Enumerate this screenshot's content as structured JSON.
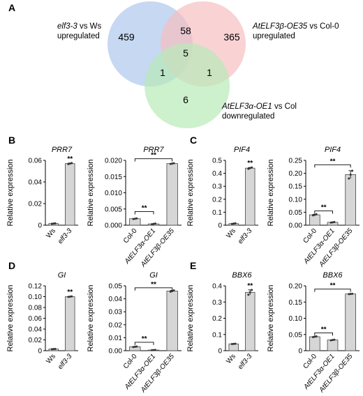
{
  "panel_labels": [
    "A",
    "B",
    "C",
    "D",
    "E"
  ],
  "venn": {
    "sets": [
      {
        "label_italic": "elf3-3",
        "label_line1_rest": " vs Ws",
        "label_line2": "upregulated",
        "color": "#aec7ec"
      },
      {
        "label_italic": "AtELF3β-OE35",
        "label_line1_rest": " vs Col-0",
        "label_line2": "upregulated",
        "color": "#f7bfc1"
      },
      {
        "label_italic": "AtELF3α-OE1",
        "label_line1_rest": " vs Col",
        "label_line2": "downregulated",
        "color": "#b8eab8"
      }
    ],
    "regions": {
      "only_1": "459",
      "only_2": "365",
      "only_3": "6",
      "1_2": "58",
      "1_3": "1",
      "2_3": "1",
      "all": "5"
    }
  },
  "chart_data": [
    {
      "id": "B1",
      "type": "bar",
      "title": "PRR7",
      "ylabel": "Relative expression",
      "categories": [
        "Ws",
        "elf3-3"
      ],
      "values": [
        0.0015,
        0.057
      ],
      "points": [
        [
          0.0013,
          0.0015,
          0.0017
        ],
        [
          0.0565,
          0.057,
          0.0575
        ]
      ],
      "ylim": [
        0,
        0.06
      ],
      "yticks": [
        "0",
        "0.02",
        "0.04",
        "0.06"
      ],
      "significance": [
        {
          "bar": 1,
          "label": "**"
        }
      ]
    },
    {
      "id": "B2",
      "type": "bar",
      "title": "PRR7",
      "ylabel": "Relative expression",
      "categories": [
        "Col-0",
        "AtELF3α-OE1",
        "AtELF3β-OE35"
      ],
      "values": [
        0.002,
        0.0004,
        0.019
      ],
      "points": [
        [
          0.0019,
          0.002,
          0.0021
        ],
        [
          0.0003,
          0.0004,
          0.0005
        ],
        [
          0.0189,
          0.019,
          0.0191
        ]
      ],
      "ylim": [
        0,
        0.02
      ],
      "yticks": [
        "0.000",
        "0.005",
        "0.010",
        "0.015",
        "0.020"
      ],
      "brackets": [
        {
          "from": 0,
          "to": 1,
          "y": 0.0042,
          "label": "**"
        },
        {
          "from": 0,
          "to": 2,
          "y": 0.0205,
          "label": "**"
        }
      ]
    },
    {
      "id": "C1",
      "type": "bar",
      "title": "PIF4",
      "ylabel": "Relative expression",
      "categories": [
        "Ws",
        "elf3-3"
      ],
      "values": [
        0.012,
        0.44
      ],
      "points": [
        [
          0.01,
          0.012,
          0.014
        ],
        [
          0.435,
          0.44,
          0.445
        ]
      ],
      "ylim": [
        0,
        0.5
      ],
      "yticks": [
        "0",
        "0.1",
        "0.2",
        "0.3",
        "0.4",
        "0.5"
      ],
      "significance": [
        {
          "bar": 1,
          "label": "**"
        }
      ]
    },
    {
      "id": "C2",
      "type": "bar",
      "title": "PIF4",
      "ylabel": "Relative expression",
      "categories": [
        "Col-0",
        "AtELF3α-OE1",
        "AtELF3β-OE35"
      ],
      "values": [
        0.04,
        0.011,
        0.195
      ],
      "points": [
        [
          0.038,
          0.04,
          0.042
        ],
        [
          0.01,
          0.011,
          0.012
        ],
        [
          0.18,
          0.195,
          0.21
        ]
      ],
      "ylim": [
        0,
        0.25
      ],
      "yticks": [
        "0.00",
        "0.05",
        "0.10",
        "0.15",
        "0.20",
        "0.25"
      ],
      "brackets": [
        {
          "from": 0,
          "to": 1,
          "y": 0.055,
          "label": "**"
        },
        {
          "from": 0,
          "to": 2,
          "y": 0.233,
          "label": "**"
        }
      ]
    },
    {
      "id": "D1",
      "type": "bar",
      "title": "GI",
      "ylabel": "Relative expression",
      "categories": [
        "Ws",
        "elf3-3"
      ],
      "values": [
        0.003,
        0.1
      ],
      "points": [
        [
          0.0027,
          0.003,
          0.0033
        ],
        [
          0.0995,
          0.1,
          0.1005
        ]
      ],
      "ylim": [
        0,
        0.12
      ],
      "yticks": [
        "0",
        "0.02",
        "0.04",
        "0.06",
        "0.08",
        "0.10",
        "0.12"
      ],
      "significance": [
        {
          "bar": 1,
          "label": "**"
        }
      ]
    },
    {
      "id": "D2",
      "type": "bar",
      "title": "GI",
      "ylabel": "Relative expression",
      "categories": [
        "Col-0",
        "AtELF3α-OE1",
        "AtELF3β-OE35"
      ],
      "values": [
        0.003,
        0.0005,
        0.046
      ],
      "points": [
        [
          0.0028,
          0.003,
          0.0032
        ],
        [
          0.0004,
          0.0005,
          0.0006
        ],
        [
          0.0455,
          0.046,
          0.0465
        ]
      ],
      "ylim": [
        0,
        0.05
      ],
      "yticks": [
        "0.00",
        "0.01",
        "0.02",
        "0.03",
        "0.04",
        "0.05"
      ],
      "brackets": [
        {
          "from": 0,
          "to": 1,
          "y": 0.0065,
          "label": "**"
        },
        {
          "from": 0,
          "to": 2,
          "y": 0.0485,
          "label": "**"
        }
      ]
    },
    {
      "id": "E1",
      "type": "bar",
      "title": "BBX6",
      "ylabel": "Relative expression",
      "categories": [
        "Ws",
        "elf3-3"
      ],
      "values": [
        0.042,
        0.36
      ],
      "points": [
        [
          0.041,
          0.042,
          0.043
        ],
        [
          0.345,
          0.36,
          0.375
        ]
      ],
      "ylim": [
        0,
        0.4
      ],
      "yticks": [
        "0",
        "0.1",
        "0.2",
        "0.3",
        "0.4"
      ],
      "significance": [
        {
          "bar": 1,
          "label": "**"
        }
      ]
    },
    {
      "id": "E2",
      "type": "bar",
      "title": "BBX6",
      "ylabel": "Relative expression",
      "categories": [
        "Col-0",
        "AtELF3α-OE1",
        "AtELF3β-OE35"
      ],
      "values": [
        0.043,
        0.033,
        0.175
      ],
      "points": [
        [
          0.042,
          0.043,
          0.044
        ],
        [
          0.032,
          0.033,
          0.034
        ],
        [
          0.1745,
          0.175,
          0.1755
        ]
      ],
      "ylim": [
        0,
        0.2
      ],
      "yticks": [
        "0",
        "0.05",
        "0.10",
        "0.15",
        "0.20"
      ],
      "brackets": [
        {
          "from": 0,
          "to": 1,
          "y": 0.055,
          "label": "**"
        },
        {
          "from": 0,
          "to": 2,
          "y": 0.19,
          "label": "**"
        }
      ]
    }
  ]
}
